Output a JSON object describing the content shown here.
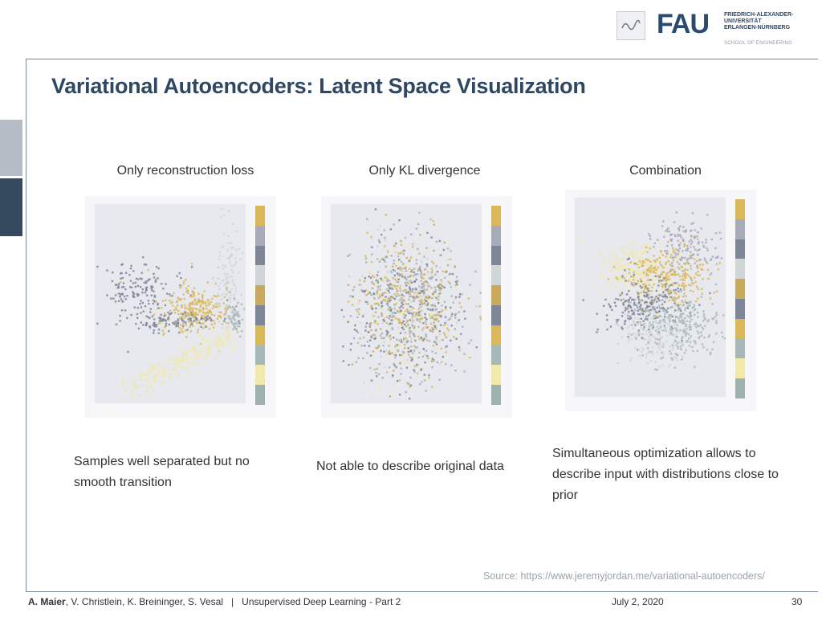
{
  "header": {
    "logo_text": "FAU",
    "university_lines": [
      "FRIEDRICH-ALEXANDER-",
      "UNIVERSITÄT",
      "ERLANGEN-NÜRNBERG"
    ],
    "school": "SCHOOL OF ENGINEERING"
  },
  "slide": {
    "title": "Variational Autoencoders: Latent Space Visualization"
  },
  "columns": [
    {
      "title": "Only reconstruction loss",
      "description": "Samples well separated but no smooth transition"
    },
    {
      "title": "Only KL divergence",
      "description": "Not able to describe original data"
    },
    {
      "title": "Combination",
      "description": "Simultaneous optimization allows to describe input with distributions close to prior"
    }
  ],
  "colorbar": {
    "colors": [
      "#d9b85b",
      "#a8acb8",
      "#7e8797",
      "#cfd6d5",
      "#c8aa5e",
      "#7e8797",
      "#d9b85b",
      "#a7b8b8",
      "#f0e9a9",
      "#9eb2af"
    ]
  },
  "source": "Source: https://www.jeremyjordan.me/variational-autoencoders/",
  "footer": {
    "author_bold": "A. Maier",
    "authors_rest": ", V. Christlein, K. Breininger, S. Vesal",
    "separator": "|",
    "lecture": "Unsupervised Deep Learning - Part 2",
    "date": "July 2, 2020",
    "page": "30"
  }
}
